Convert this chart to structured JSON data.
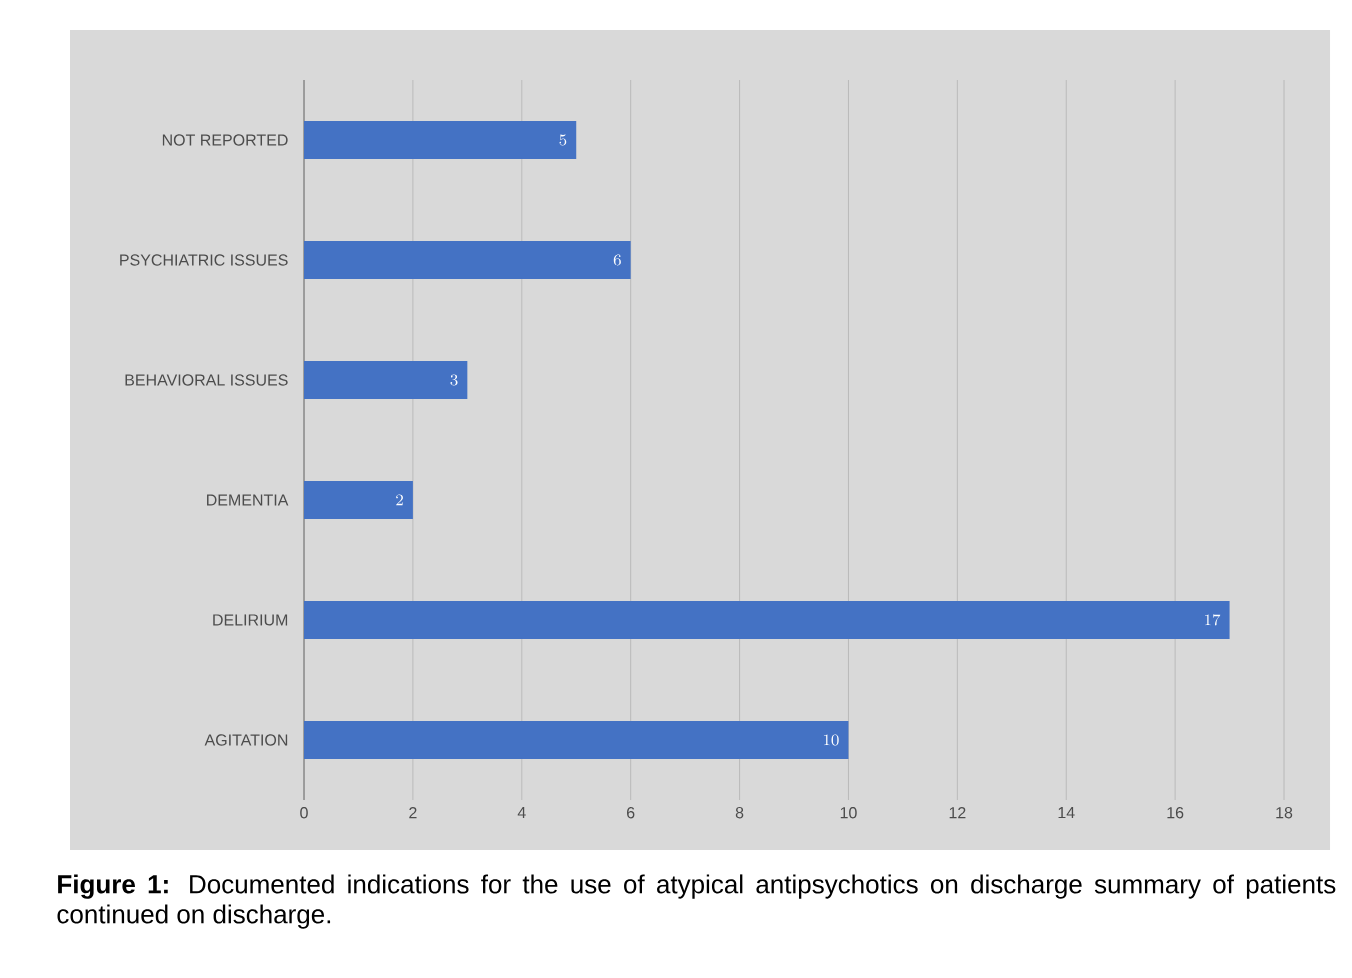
{
  "chart_data": {
    "type": "bar",
    "orientation": "horizontal",
    "categories": [
      "NOT REPORTED",
      "PSYCHIATRIC ISSUES",
      "BEHAVIORAL ISSUES",
      "DEMENTIA",
      "DELIRIUM",
      "AGITATION"
    ],
    "values": [
      5,
      6,
      3,
      2,
      17,
      10
    ],
    "color": "#4472c4",
    "data_labels": true,
    "xlim": [
      0,
      18
    ],
    "xticks": [
      0,
      2,
      4,
      6,
      8,
      10,
      12,
      14,
      16,
      18
    ],
    "grid": "x",
    "annotations": [
      "**Figure 1:** Documented indications for the use of atypical antipsychotics on discharge summary of patients continued on discharge."
    ]
  }
}
